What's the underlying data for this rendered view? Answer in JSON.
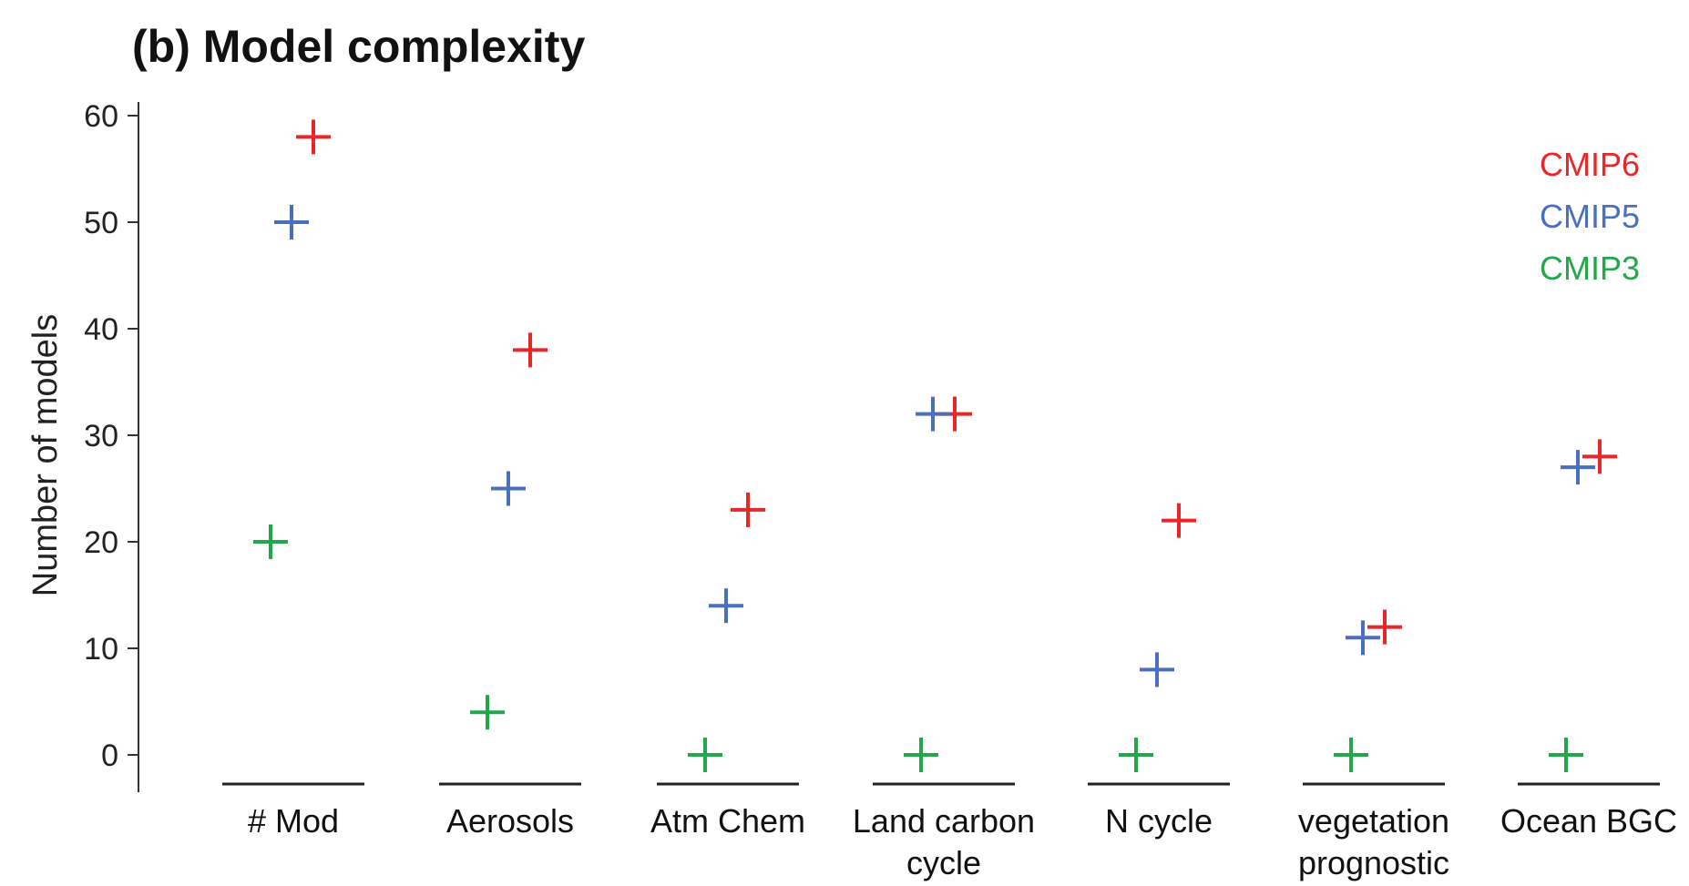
{
  "chart_data": {
    "type": "scatter",
    "title": "(b) Model complexity",
    "ylabel": "Number of models",
    "xlabel": "",
    "ylim": [
      0,
      60
    ],
    "yticks": [
      0,
      10,
      20,
      30,
      40,
      50,
      60
    ],
    "categories": [
      [
        "# Mod"
      ],
      [
        "Aerosols"
      ],
      [
        "Atm Chem"
      ],
      [
        "Land carbon",
        "cycle"
      ],
      [
        "N cycle"
      ],
      [
        "vegetation",
        "prognostic"
      ],
      [
        "Ocean BGC"
      ]
    ],
    "series": [
      {
        "name": "CMIP6",
        "color": "#e8272a",
        "values": [
          58,
          38,
          23,
          32,
          22,
          12,
          28
        ]
      },
      {
        "name": "CMIP5",
        "color": "#4a6fbe",
        "values": [
          50,
          25,
          14,
          32,
          8,
          11,
          27
        ]
      },
      {
        "name": "CMIP3",
        "color": "#22a84a",
        "values": [
          20,
          4,
          0,
          0,
          0,
          0,
          0
        ]
      }
    ],
    "legend_position": "top-right",
    "marker": "plus",
    "grid": false
  }
}
